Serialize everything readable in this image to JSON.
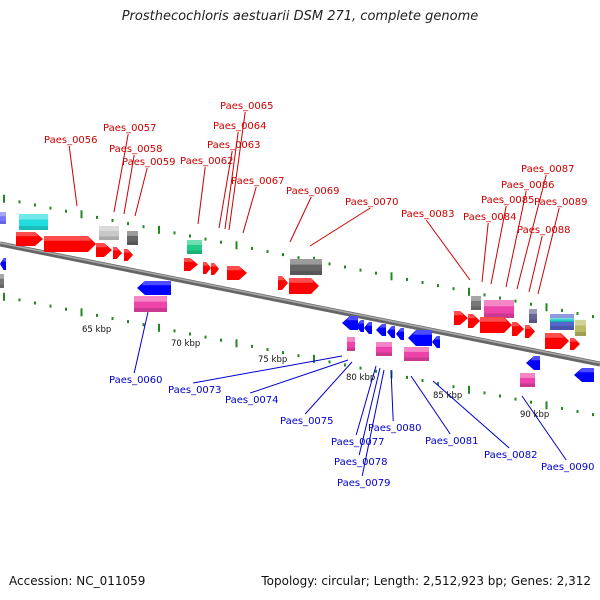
{
  "title": "Prosthecochloris aestuarii DSM 271, complete genome",
  "footer": {
    "accession": "Accession: NC_011059",
    "topology": "Topology: circular; Length: 2,512,923 bp; Genes: 2,312"
  },
  "colors": {
    "forward_label": "#cc0000",
    "reverse_label": "#0000cc",
    "forward_gene": "#ff0000",
    "reverse_gene": "#0000ff",
    "backbone": "#888888",
    "tick": "#228822"
  },
  "scale_labels": [
    "65 kbp",
    "70 kbp",
    "75 kbp",
    "80 kbp",
    "85 kbp",
    "90 kbp"
  ],
  "forward_genes": [
    "Paes_0056",
    "Paes_0057",
    "Paes_0058",
    "Paes_0059",
    "Paes_0062",
    "Paes_0063",
    "Paes_0064",
    "Paes_0065",
    "Paes_0067",
    "Paes_0069",
    "Paes_0070",
    "Paes_0083",
    "Paes_0084",
    "Paes_0085",
    "Paes_0086",
    "Paes_0087",
    "Paes_0088",
    "Paes_0089"
  ],
  "reverse_genes": [
    "Paes_0060",
    "Paes_0073",
    "Paes_0074",
    "Paes_0075",
    "Paes_0077",
    "Paes_0078",
    "Paes_0079",
    "Paes_0080",
    "Paes_0081",
    "Paes_0082",
    "Paes_0090"
  ]
}
